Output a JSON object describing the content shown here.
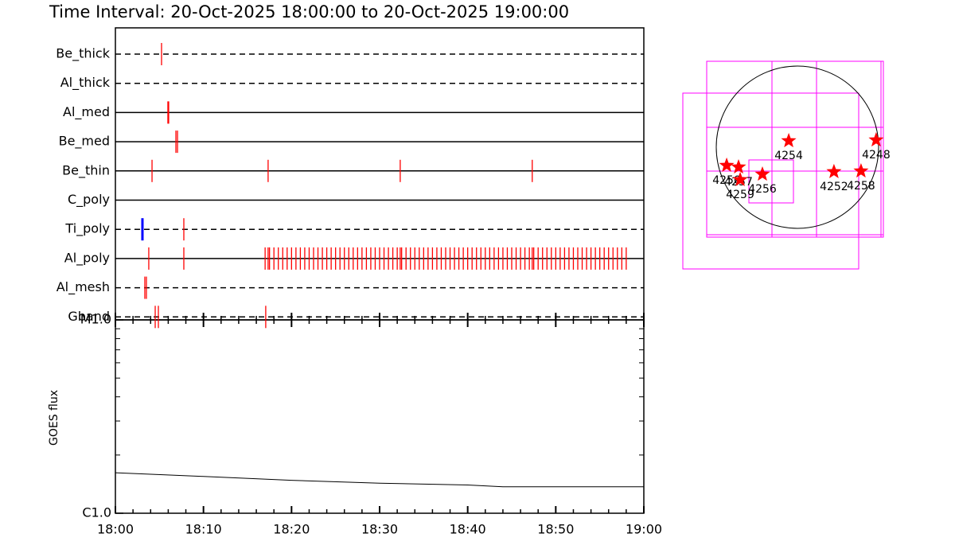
{
  "chart_data": [
    {
      "type": "timeline",
      "title": "Time Interval: 20-Oct-2025 18:00:00 to 20-Oct-2025 19:00:00",
      "xlim": [
        0,
        60
      ],
      "xticks": [
        0,
        10,
        20,
        30,
        40,
        50,
        60
      ],
      "xminor": [
        2,
        4,
        6,
        8,
        12,
        14,
        16,
        18,
        22,
        24,
        26,
        28,
        32,
        34,
        36,
        38,
        42,
        44,
        46,
        48,
        52,
        54,
        56,
        58
      ],
      "event_color": "#ff0000",
      "rows": [
        {
          "name": "Be_thick",
          "style": "dashed",
          "events": [
            5.24
          ]
        },
        {
          "name": "Al_thick",
          "style": "dashed",
          "events": []
        },
        {
          "name": "Al_med",
          "style": "solid",
          "events": [
            5.96,
            6.05
          ]
        },
        {
          "name": "Be_med",
          "style": "solid",
          "events": [
            6.87,
            7.05
          ]
        },
        {
          "name": "Be_thin",
          "style": "solid",
          "events": [
            4.16,
            17.34,
            32.34,
            47.33
          ]
        },
        {
          "name": "C_poly",
          "style": "solid",
          "events": []
        },
        {
          "name": "Ti_poly",
          "style": "dashed",
          "events": [
            3.07,
            7.77
          ],
          "colors": [
            "#0000ff",
            "#ff0000"
          ]
        },
        {
          "name": "Al_poly",
          "style": "solid",
          "events": [
            3.79,
            7.77,
            17.34,
            32.34,
            47.33,
            17,
            17.5,
            18,
            18.5,
            19,
            19.5,
            20,
            20.5,
            21,
            21.5,
            22,
            22.5,
            23,
            23.5,
            24,
            24.5,
            25,
            25.5,
            26,
            26.5,
            27,
            27.5,
            28,
            28.5,
            29,
            29.5,
            30,
            30.5,
            31,
            31.5,
            32,
            32.5,
            33,
            33.5,
            34,
            34.5,
            35,
            35.5,
            36,
            36.5,
            37,
            37.5,
            38,
            38.5,
            39,
            39.5,
            40,
            40.5,
            41,
            41.5,
            42,
            42.5,
            43,
            43.5,
            44,
            44.5,
            45,
            45.5,
            46,
            46.5,
            47,
            47.5,
            48,
            48.5,
            49,
            49.5,
            50,
            50.5,
            51,
            51.5,
            52,
            52.5,
            53,
            53.5,
            54,
            54.5,
            55,
            55.5,
            56,
            56.5,
            57,
            57.5,
            58
          ]
        },
        {
          "name": "Al_mesh",
          "style": "dashed",
          "events": [
            3.34,
            3.52
          ]
        },
        {
          "name": "Gband",
          "style": "dashed",
          "events": [
            4.52,
            4.88,
            17.07
          ]
        }
      ]
    },
    {
      "type": "line",
      "ylabel": "GOES flux",
      "log": true,
      "xlim": [
        0,
        60
      ],
      "xticks": [
        {
          "value": 0,
          "label": "18:00"
        },
        {
          "value": 10,
          "label": "18:10"
        },
        {
          "value": 20,
          "label": "18:20"
        },
        {
          "value": 30,
          "label": "18:30"
        },
        {
          "value": 40,
          "label": "18:40"
        },
        {
          "value": 50,
          "label": "18:50"
        },
        {
          "value": 60,
          "label": "19:00"
        }
      ],
      "xminor": [
        2,
        4,
        6,
        8,
        12,
        14,
        16,
        18,
        22,
        24,
        26,
        28,
        32,
        34,
        36,
        38,
        42,
        44,
        46,
        48,
        52,
        54,
        56,
        58
      ],
      "ylim": [
        1e-06,
        1e-05
      ],
      "yticks": [
        {
          "value": 1e-06,
          "label": "C1.0"
        },
        {
          "value": 1e-05,
          "label": "M1.0"
        }
      ],
      "yminor": [
        2e-06,
        3e-06,
        4e-06,
        5e-06,
        6e-06,
        7e-06,
        8e-06,
        9e-06
      ],
      "x": [
        0,
        10,
        20,
        30,
        40,
        44,
        50,
        60
      ],
      "values": [
        1.62e-06,
        1.55e-06,
        1.48e-06,
        1.43e-06,
        1.4e-06,
        1.37e-06,
        1.37e-06,
        1.37e-06
      ],
      "color": "#000000"
    },
    {
      "type": "map",
      "rsun": 960,
      "color": "#ff0000",
      "points": [
        {
          "label": "4250",
          "x": -837,
          "y": -216
        },
        {
          "label": "4257",
          "x": -696,
          "y": -235
        },
        {
          "label": "4259",
          "x": -677,
          "y": -385
        },
        {
          "label": "4256",
          "x": -414,
          "y": -320
        },
        {
          "label": "4254",
          "x": -103,
          "y": 75
        },
        {
          "label": "4252",
          "x": 432,
          "y": -291
        },
        {
          "label": "4258",
          "x": 752,
          "y": -282
        },
        {
          "label": "4248",
          "x": 931,
          "y": 85
        }
      ]
    }
  ]
}
